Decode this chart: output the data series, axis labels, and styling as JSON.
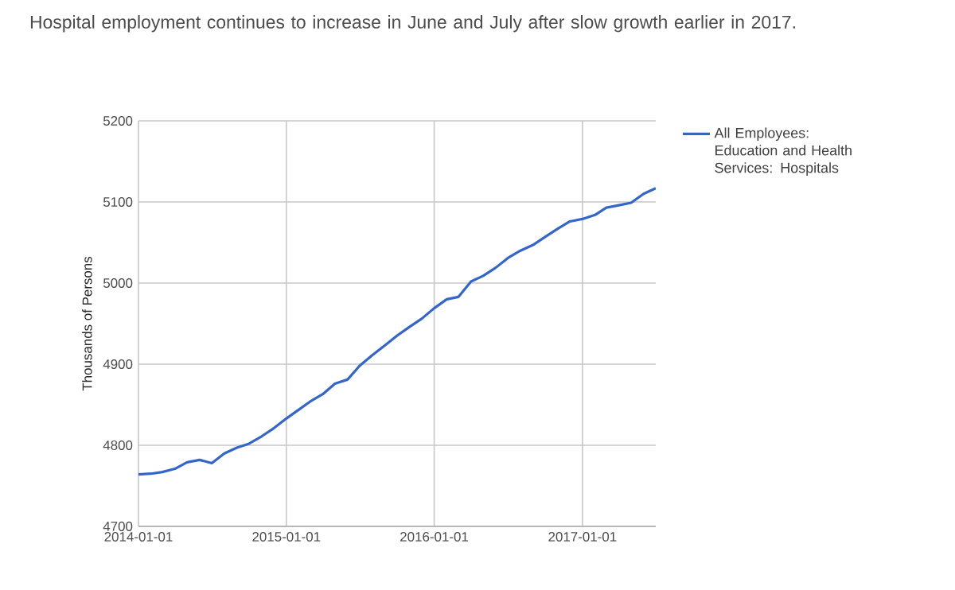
{
  "chart_data": {
    "type": "line",
    "title": "Hospital employment continues to increase in June and July after slow growth earlier in 2017.",
    "ylabel": "Thousands of Persons",
    "x": [
      "2014-01",
      "2014-02",
      "2014-03",
      "2014-04",
      "2014-05",
      "2014-06",
      "2014-07",
      "2014-08",
      "2014-09",
      "2014-10",
      "2014-11",
      "2014-12",
      "2015-01",
      "2015-02",
      "2015-03",
      "2015-04",
      "2015-05",
      "2015-06",
      "2015-07",
      "2015-08",
      "2015-09",
      "2015-10",
      "2015-11",
      "2015-12",
      "2016-01",
      "2016-02",
      "2016-03",
      "2016-04",
      "2016-05",
      "2016-06",
      "2016-07",
      "2016-08",
      "2016-09",
      "2016-10",
      "2016-11",
      "2016-12",
      "2017-01",
      "2017-02",
      "2017-03",
      "2017-04",
      "2017-05",
      "2017-06",
      "2017-07"
    ],
    "series": [
      {
        "name": "All Employees: Education and Health Services: Hospitals",
        "color": "#3366cc",
        "values": [
          4764,
          4765,
          4767,
          4771,
          4779,
          4782,
          4778,
          4790,
          4797,
          4802,
          4811,
          4821,
          4833,
          4844,
          4854,
          4863,
          4876,
          4881,
          4898,
          4911,
          4923,
          4935,
          4946,
          4956,
          4969,
          4980,
          4983,
          5002,
          5009,
          5019,
          5031,
          5040,
          5047,
          5057,
          5067,
          5076,
          5079,
          5084,
          5093,
          5096,
          5099,
          5110,
          5117
        ]
      }
    ],
    "xlim": [
      "2014-01-01",
      "2017-07-01"
    ],
    "ylim": [
      4700,
      5200
    ],
    "xticks": [
      "2014-01-01",
      "2015-01-01",
      "2016-01-01",
      "2017-01-01"
    ],
    "yticks": [
      4700,
      4800,
      4900,
      5000,
      5100,
      5200
    ],
    "grid": true,
    "legend": "right",
    "marker": "none",
    "line_style": "solid"
  }
}
